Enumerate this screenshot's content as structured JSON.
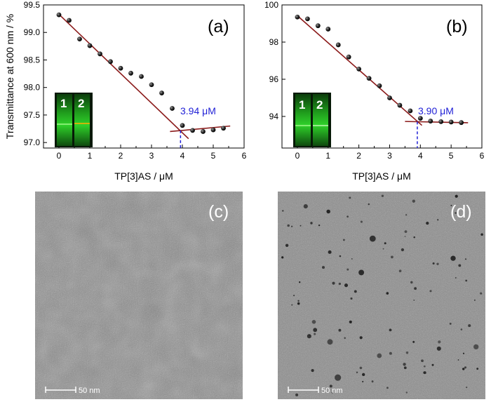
{
  "colors": {
    "fit_line": "#8b1a1a",
    "annotation": "#1f1fd6",
    "point": "#111111",
    "cuvette": "#22c41e",
    "tem_background": "#8c8c8c"
  },
  "chart_data": [
    {
      "type": "scatter",
      "panel_label": "(a)",
      "ylabel": "Transmittance at 600 nm / %",
      "xlabel": "TP[3]AS / μM",
      "xlim": [
        -0.5,
        6
      ],
      "ylim": [
        96.9,
        99.5
      ],
      "xticks": [
        0,
        1,
        2,
        3,
        4,
        5,
        6
      ],
      "yticks": [
        97.0,
        97.5,
        98.0,
        98.5,
        99.0,
        99.5
      ],
      "ytick_labels": [
        "97.0",
        "97.5",
        "98.0",
        "98.5",
        "99.0",
        "99.5"
      ],
      "x": [
        0,
        0.33,
        0.67,
        1.0,
        1.33,
        1.67,
        2.0,
        2.33,
        2.67,
        3.0,
        3.33,
        3.67,
        4.0,
        4.33,
        4.67,
        5.0,
        5.33
      ],
      "y": [
        99.32,
        99.22,
        98.88,
        98.76,
        98.61,
        98.47,
        98.35,
        98.26,
        98.2,
        98.05,
        97.9,
        97.62,
        97.31,
        97.22,
        97.2,
        97.23,
        97.26
      ],
      "fit_lines": [
        {
          "x": [
            0,
            4.2
          ],
          "y": [
            99.33,
            97.07
          ]
        },
        {
          "x": [
            3.6,
            5.55
          ],
          "y": [
            97.2,
            97.3
          ]
        }
      ],
      "intersection": {
        "x": 3.94,
        "y": 97.22
      },
      "annotation": "3.94 μM",
      "inset_cuvette_labels": [
        "1",
        "2"
      ]
    },
    {
      "type": "scatter",
      "panel_label": "(b)",
      "ylabel": "",
      "xlabel": "TP[3]AS / μM",
      "xlim": [
        -0.5,
        6
      ],
      "ylim": [
        92.3,
        100
      ],
      "xticks": [
        0,
        1,
        2,
        3,
        4,
        5,
        6
      ],
      "yticks": [
        94,
        96,
        98,
        100
      ],
      "ytick_labels": [
        "94",
        "96",
        "98",
        "100"
      ],
      "x": [
        0,
        0.33,
        0.67,
        1.0,
        1.33,
        1.67,
        2.0,
        2.33,
        2.67,
        3.0,
        3.33,
        3.67,
        4.0,
        4.33,
        4.67,
        5.0,
        5.33
      ],
      "y": [
        99.35,
        99.25,
        98.88,
        98.7,
        97.85,
        97.2,
        96.55,
        96.05,
        95.65,
        95.0,
        94.6,
        94.3,
        93.9,
        93.75,
        93.72,
        93.7,
        93.67
      ],
      "fit_lines": [
        {
          "x": [
            0,
            4.05
          ],
          "y": [
            99.42,
            93.52
          ]
        },
        {
          "x": [
            3.5,
            5.55
          ],
          "y": [
            93.73,
            93.66
          ]
        }
      ],
      "intersection": {
        "x": 3.9,
        "y": 93.72
      },
      "annotation": "3.90 μM",
      "inset_cuvette_labels": [
        "1",
        "2"
      ]
    }
  ],
  "tem_panels": [
    {
      "label": "(c)",
      "scale_bar": "50 nm"
    },
    {
      "label": "(d)",
      "scale_bar": "50 nm"
    }
  ]
}
